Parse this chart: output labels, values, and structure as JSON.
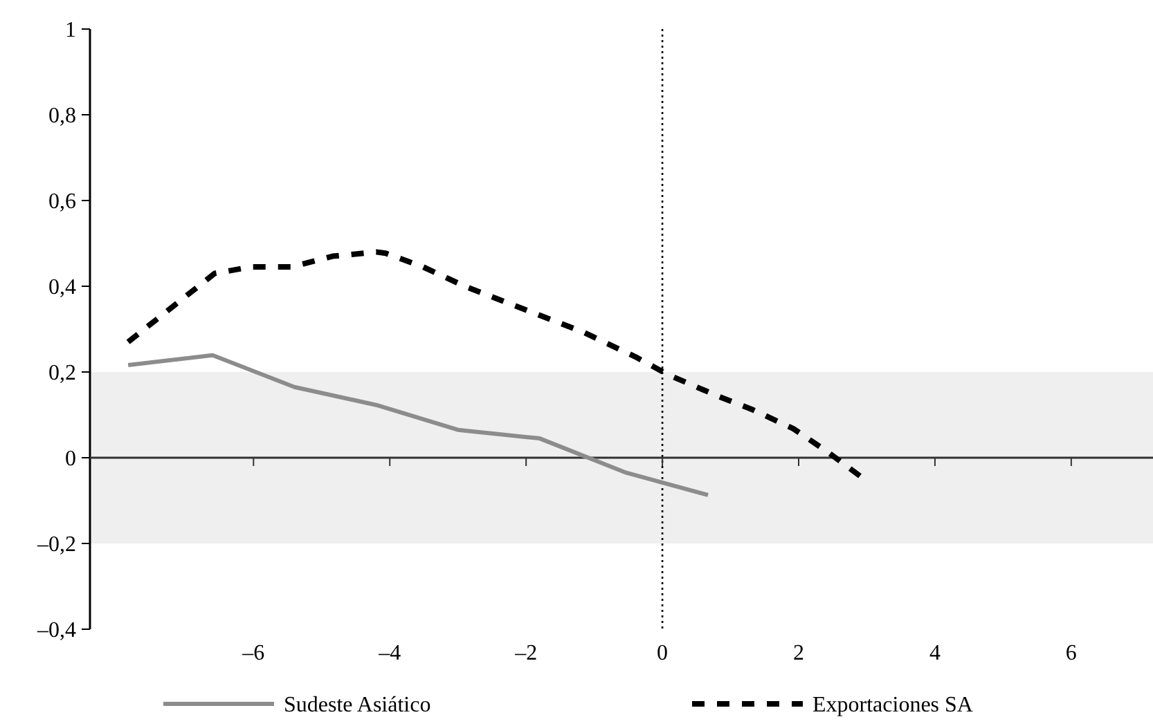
{
  "chart_data": {
    "type": "line",
    "xlim": [
      -8.4,
      7.2
    ],
    "xticks": [
      {
        "value": -6,
        "label": "–6"
      },
      {
        "value": -4,
        "label": "–4"
      },
      {
        "value": -2,
        "label": "–2"
      },
      0,
      2,
      4,
      6
    ],
    "ylim": [
      -0.4,
      1
    ],
    "yticks": [
      {
        "value": -0.4,
        "label": "–0,4"
      },
      {
        "value": -0.2,
        "label": "–0,2"
      },
      0,
      {
        "value": 0.2,
        "label": "0,2"
      },
      {
        "value": 0.4,
        "label": "0,4"
      },
      {
        "value": 0.6,
        "label": "0,6"
      },
      {
        "value": 0.8,
        "label": "0,8"
      },
      1
    ],
    "grid": false,
    "legend": "bottom",
    "bands": [
      {
        "axis": "y",
        "from": -0.2,
        "to": 0.2,
        "color": "#eeefee"
      }
    ],
    "ref_lines": [
      {
        "axis": "x",
        "value": 0,
        "color": "#000000",
        "line_style": "dotted"
      }
    ],
    "series": [
      {
        "name": "Sudeste Asiático",
        "color": "#8c8c8c",
        "line_style": "solid",
        "x": [
          -7.84,
          -6.6,
          -5.4,
          -4.2,
          -3.0,
          -1.8,
          -0.53,
          0.67
        ],
        "values": [
          0.216,
          0.239,
          0.165,
          0.123,
          0.065,
          0.045,
          -0.035,
          -0.087
        ]
      },
      {
        "name": "Exportaciones SA",
        "color": "#000000",
        "line_style": "dashed",
        "x": [
          -7.84,
          -6.57,
          -6.04,
          -5.45,
          -4.84,
          -4.2,
          -4.06,
          -3.51,
          -2.9,
          -2.33,
          -1.76,
          -1.16,
          -0.39,
          0.08,
          0.84,
          1.31,
          1.92,
          2.43,
          2.92
        ],
        "values": [
          0.27,
          0.43,
          0.445,
          0.445,
          0.47,
          0.48,
          0.477,
          0.445,
          0.4,
          0.365,
          0.33,
          0.293,
          0.235,
          0.194,
          0.142,
          0.113,
          0.068,
          0.013,
          -0.045
        ]
      }
    ]
  }
}
